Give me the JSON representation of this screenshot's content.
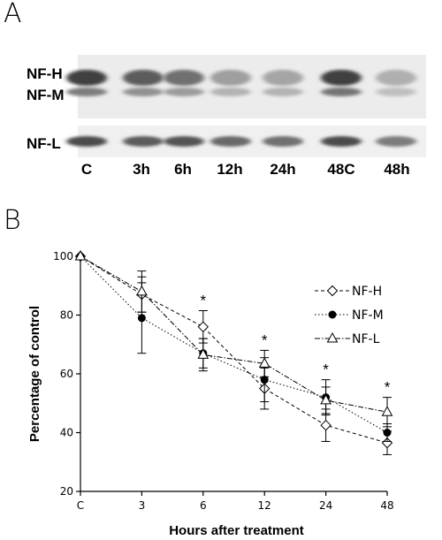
{
  "panels": {
    "a": "A",
    "b": "B"
  },
  "blot": {
    "band_labels": [
      "NF-H",
      "NF-M",
      "NF-L"
    ],
    "lanes": [
      "C",
      "3h",
      "6h",
      "12h",
      "24h",
      "48C",
      "48h"
    ],
    "band_intensity": {
      "NF-H": [
        0.85,
        0.72,
        0.62,
        0.38,
        0.35,
        0.85,
        0.3
      ],
      "NF-M": [
        0.55,
        0.45,
        0.4,
        0.28,
        0.28,
        0.6,
        0.22
      ],
      "NF-L": [
        0.8,
        0.72,
        0.75,
        0.65,
        0.62,
        0.8,
        0.55
      ]
    }
  },
  "chart_data": {
    "type": "line",
    "xlabel": "Hours after treatment",
    "ylabel": "Percentage of control",
    "categories": [
      "C",
      "3",
      "6",
      "12",
      "24",
      "48"
    ],
    "ylim": [
      20,
      100
    ],
    "yticks": [
      "20",
      "40",
      "60",
      "80",
      "100"
    ],
    "legend_position": "right",
    "series": [
      {
        "name": "NF-H",
        "marker": "diamond-open",
        "dash": "4,3",
        "values": [
          100,
          87,
          76,
          55,
          42.5,
          36.5
        ],
        "errors": [
          0,
          6,
          5.5,
          7,
          5.5,
          4
        ]
      },
      {
        "name": "NF-M",
        "marker": "circle-filled",
        "dash": "1.5,2.5",
        "values": [
          100,
          79,
          67,
          58,
          52,
          40
        ],
        "errors": [
          0,
          12,
          5,
          7.5,
          6,
          3
        ]
      },
      {
        "name": "NF-L",
        "marker": "triangle-open",
        "dash": "6,2,1.5,2",
        "values": [
          100,
          88,
          66.5,
          63.5,
          51,
          47
        ],
        "errors": [
          0,
          7,
          5.5,
          4.5,
          4.5,
          5
        ]
      }
    ],
    "annotations": [
      {
        "text": "*",
        "category": "6"
      },
      {
        "text": "*",
        "category": "12"
      },
      {
        "text": "*",
        "category": "24"
      },
      {
        "text": "*",
        "category": "48"
      }
    ]
  }
}
